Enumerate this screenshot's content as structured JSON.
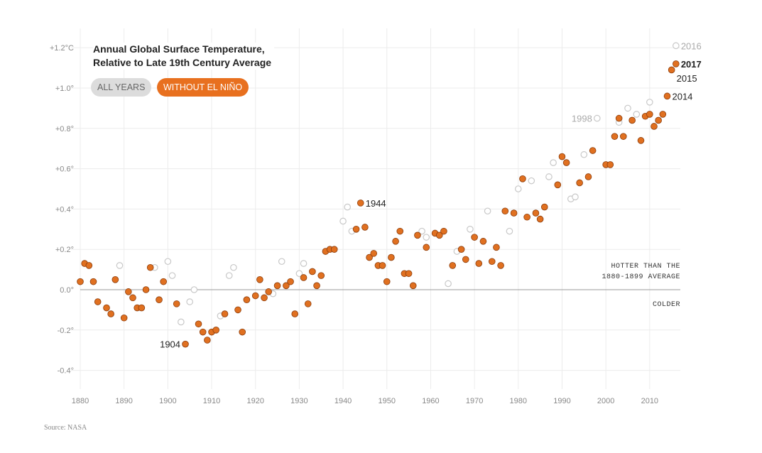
{
  "title_line1": "Annual Global Surface Temperature,",
  "title_line2": "Relative to Late 19th Century Average",
  "buttons": {
    "all_years": "ALL YEARS",
    "without_el_nino": "WITHOUT EL NIÑO"
  },
  "source": "Source: NASA",
  "notes": {
    "hotter_line1": "HOTTER THAN THE",
    "hotter_line2": "1880-1899 AVERAGE",
    "colder": "COLDER"
  },
  "colors": {
    "orange": "#e07020",
    "orange_stroke": "#8a3c0c",
    "grey_circle": "#c8c8c8",
    "button_active": "#e8701f",
    "button_inactive": "#dcdcdc"
  },
  "chart_data": {
    "type": "scatter",
    "xlim": [
      1880,
      2017
    ],
    "ylim": [
      -0.5,
      1.3
    ],
    "x_ticks": [
      {
        "value": 1880,
        "label": "1880"
      },
      {
        "value": 1890,
        "label": "1890"
      },
      {
        "value": 1900,
        "label": "1900"
      },
      {
        "value": 1910,
        "label": "1910"
      },
      {
        "value": 1920,
        "label": "1920"
      },
      {
        "value": 1930,
        "label": "1930"
      },
      {
        "value": 1940,
        "label": "1940"
      },
      {
        "value": 1950,
        "label": "1950"
      },
      {
        "value": 1960,
        "label": "1960"
      },
      {
        "value": 1970,
        "label": "1970"
      },
      {
        "value": 1980,
        "label": "1980"
      },
      {
        "value": 1990,
        "label": "1990"
      },
      {
        "value": 2000,
        "label": "2000"
      },
      {
        "value": 2010,
        "label": "2010"
      }
    ],
    "y_ticks": [
      {
        "value": 1.2,
        "label": "+1.2°C"
      },
      {
        "value": 1.0,
        "label": "+1.0°"
      },
      {
        "value": 0.8,
        "label": "+0.8°"
      },
      {
        "value": 0.6,
        "label": "+0.6°"
      },
      {
        "value": 0.4,
        "label": "+0.4°"
      },
      {
        "value": 0.2,
        "label": "+0.2°"
      },
      {
        "value": 0.0,
        "label": "0.0°"
      },
      {
        "value": -0.2,
        "label": "-0.2°"
      },
      {
        "value": -0.4,
        "label": "-0.4°"
      }
    ],
    "grid": true,
    "series": [
      {
        "style": "filled-orange",
        "points": [
          [
            1880,
            0.04
          ],
          [
            1881,
            0.13
          ],
          [
            1882,
            0.12
          ],
          [
            1883,
            0.04
          ],
          [
            1884,
            -0.06
          ],
          [
            1886,
            -0.09
          ],
          [
            1887,
            -0.12
          ],
          [
            1888,
            0.05
          ],
          [
            1890,
            -0.14
          ],
          [
            1891,
            -0.01
          ],
          [
            1892,
            -0.04
          ],
          [
            1893,
            -0.09
          ],
          [
            1894,
            -0.09
          ],
          [
            1895,
            0.0
          ],
          [
            1896,
            0.11
          ],
          [
            1898,
            -0.05
          ],
          [
            1899,
            0.04
          ],
          [
            1902,
            -0.07
          ],
          [
            1904,
            -0.27
          ],
          [
            1907,
            -0.17
          ],
          [
            1908,
            -0.21
          ],
          [
            1909,
            -0.25
          ],
          [
            1910,
            -0.21
          ],
          [
            1911,
            -0.2
          ],
          [
            1913,
            -0.12
          ],
          [
            1916,
            -0.1
          ],
          [
            1917,
            -0.21
          ],
          [
            1918,
            -0.05
          ],
          [
            1920,
            -0.03
          ],
          [
            1921,
            0.05
          ],
          [
            1922,
            -0.04
          ],
          [
            1923,
            -0.01
          ],
          [
            1925,
            0.02
          ],
          [
            1927,
            0.02
          ],
          [
            1928,
            0.04
          ],
          [
            1929,
            -0.12
          ],
          [
            1931,
            0.06
          ],
          [
            1932,
            -0.07
          ],
          [
            1933,
            0.09
          ],
          [
            1934,
            0.02
          ],
          [
            1935,
            0.07
          ],
          [
            1936,
            0.19
          ],
          [
            1937,
            0.2
          ],
          [
            1938,
            0.2
          ],
          [
            1944,
            0.43
          ],
          [
            1943,
            0.3
          ],
          [
            1945,
            0.31
          ],
          [
            1946,
            0.16
          ],
          [
            1947,
            0.18
          ],
          [
            1948,
            0.12
          ],
          [
            1949,
            0.12
          ],
          [
            1950,
            0.04
          ],
          [
            1951,
            0.16
          ],
          [
            1952,
            0.24
          ],
          [
            1953,
            0.29
          ],
          [
            1954,
            0.08
          ],
          [
            1955,
            0.08
          ],
          [
            1956,
            0.02
          ],
          [
            1957,
            0.27
          ],
          [
            1959,
            0.21
          ],
          [
            1961,
            0.28
          ],
          [
            1962,
            0.27
          ],
          [
            1963,
            0.29
          ],
          [
            1965,
            0.12
          ],
          [
            1967,
            0.2
          ],
          [
            1968,
            0.15
          ],
          [
            1970,
            0.26
          ],
          [
            1971,
            0.13
          ],
          [
            1972,
            0.24
          ],
          [
            1974,
            0.14
          ],
          [
            1975,
            0.21
          ],
          [
            1976,
            0.12
          ],
          [
            1977,
            0.39
          ],
          [
            1979,
            0.38
          ],
          [
            1981,
            0.55
          ],
          [
            1982,
            0.36
          ],
          [
            1984,
            0.38
          ],
          [
            1985,
            0.35
          ],
          [
            1986,
            0.41
          ],
          [
            1989,
            0.52
          ],
          [
            1990,
            0.66
          ],
          [
            1991,
            0.63
          ],
          [
            1994,
            0.53
          ],
          [
            1996,
            0.56
          ],
          [
            1997,
            0.69
          ],
          [
            2000,
            0.62
          ],
          [
            2001,
            0.62
          ],
          [
            2002,
            0.76
          ],
          [
            2003,
            0.85
          ],
          [
            2004,
            0.76
          ],
          [
            2006,
            0.84
          ],
          [
            2008,
            0.74
          ],
          [
            2009,
            0.86
          ],
          [
            2010,
            0.87
          ],
          [
            2011,
            0.81
          ],
          [
            2012,
            0.84
          ],
          [
            2013,
            0.87
          ],
          [
            2014,
            0.96
          ],
          [
            2015,
            1.09
          ],
          [
            2016,
            1.12
          ]
        ]
      },
      {
        "style": "open-grey",
        "points": [
          [
            1889,
            0.12
          ],
          [
            1897,
            0.11
          ],
          [
            1900,
            0.14
          ],
          [
            1901,
            0.07
          ],
          [
            1903,
            -0.16
          ],
          [
            1905,
            -0.06
          ],
          [
            1906,
            0.0
          ],
          [
            1912,
            -0.13
          ],
          [
            1914,
            0.07
          ],
          [
            1915,
            0.11
          ],
          [
            1924,
            -0.02
          ],
          [
            1926,
            0.14
          ],
          [
            1930,
            0.08
          ],
          [
            1931,
            0.13
          ],
          [
            1940,
            0.34
          ],
          [
            1941,
            0.41
          ],
          [
            1942,
            0.29
          ],
          [
            1958,
            0.29
          ],
          [
            1959,
            0.26
          ],
          [
            1964,
            0.03
          ],
          [
            1966,
            0.19
          ],
          [
            1969,
            0.3
          ],
          [
            1973,
            0.39
          ],
          [
            1978,
            0.29
          ],
          [
            1980,
            0.5
          ],
          [
            1983,
            0.54
          ],
          [
            1987,
            0.56
          ],
          [
            1988,
            0.63
          ],
          [
            1992,
            0.45
          ],
          [
            1993,
            0.46
          ],
          [
            1995,
            0.67
          ],
          [
            1998,
            0.85
          ],
          [
            2003,
            0.83
          ],
          [
            2005,
            0.9
          ],
          [
            2007,
            0.87
          ],
          [
            2010,
            0.93
          ],
          [
            2016,
            1.21
          ]
        ]
      }
    ],
    "annotations": [
      {
        "label": "1904",
        "x": 1904,
        "y": -0.27,
        "side": "left",
        "style": "dark"
      },
      {
        "label": "1944",
        "x": 1944,
        "y": 0.43,
        "side": "right",
        "style": "dark"
      },
      {
        "label": "1998",
        "x": 1998,
        "y": 0.85,
        "side": "left",
        "style": "grey"
      },
      {
        "label": "2014",
        "x": 2014,
        "y": 0.96,
        "side": "right",
        "style": "dark"
      },
      {
        "label": "2015",
        "x": 2015,
        "y": 1.05,
        "side": "right",
        "style": "dark"
      },
      {
        "label": "2016",
        "x": 2016,
        "y": 1.21,
        "side": "right",
        "style": "grey"
      },
      {
        "label": "2017",
        "x": 2016,
        "y": 1.12,
        "side": "right",
        "style": "bold"
      }
    ]
  }
}
